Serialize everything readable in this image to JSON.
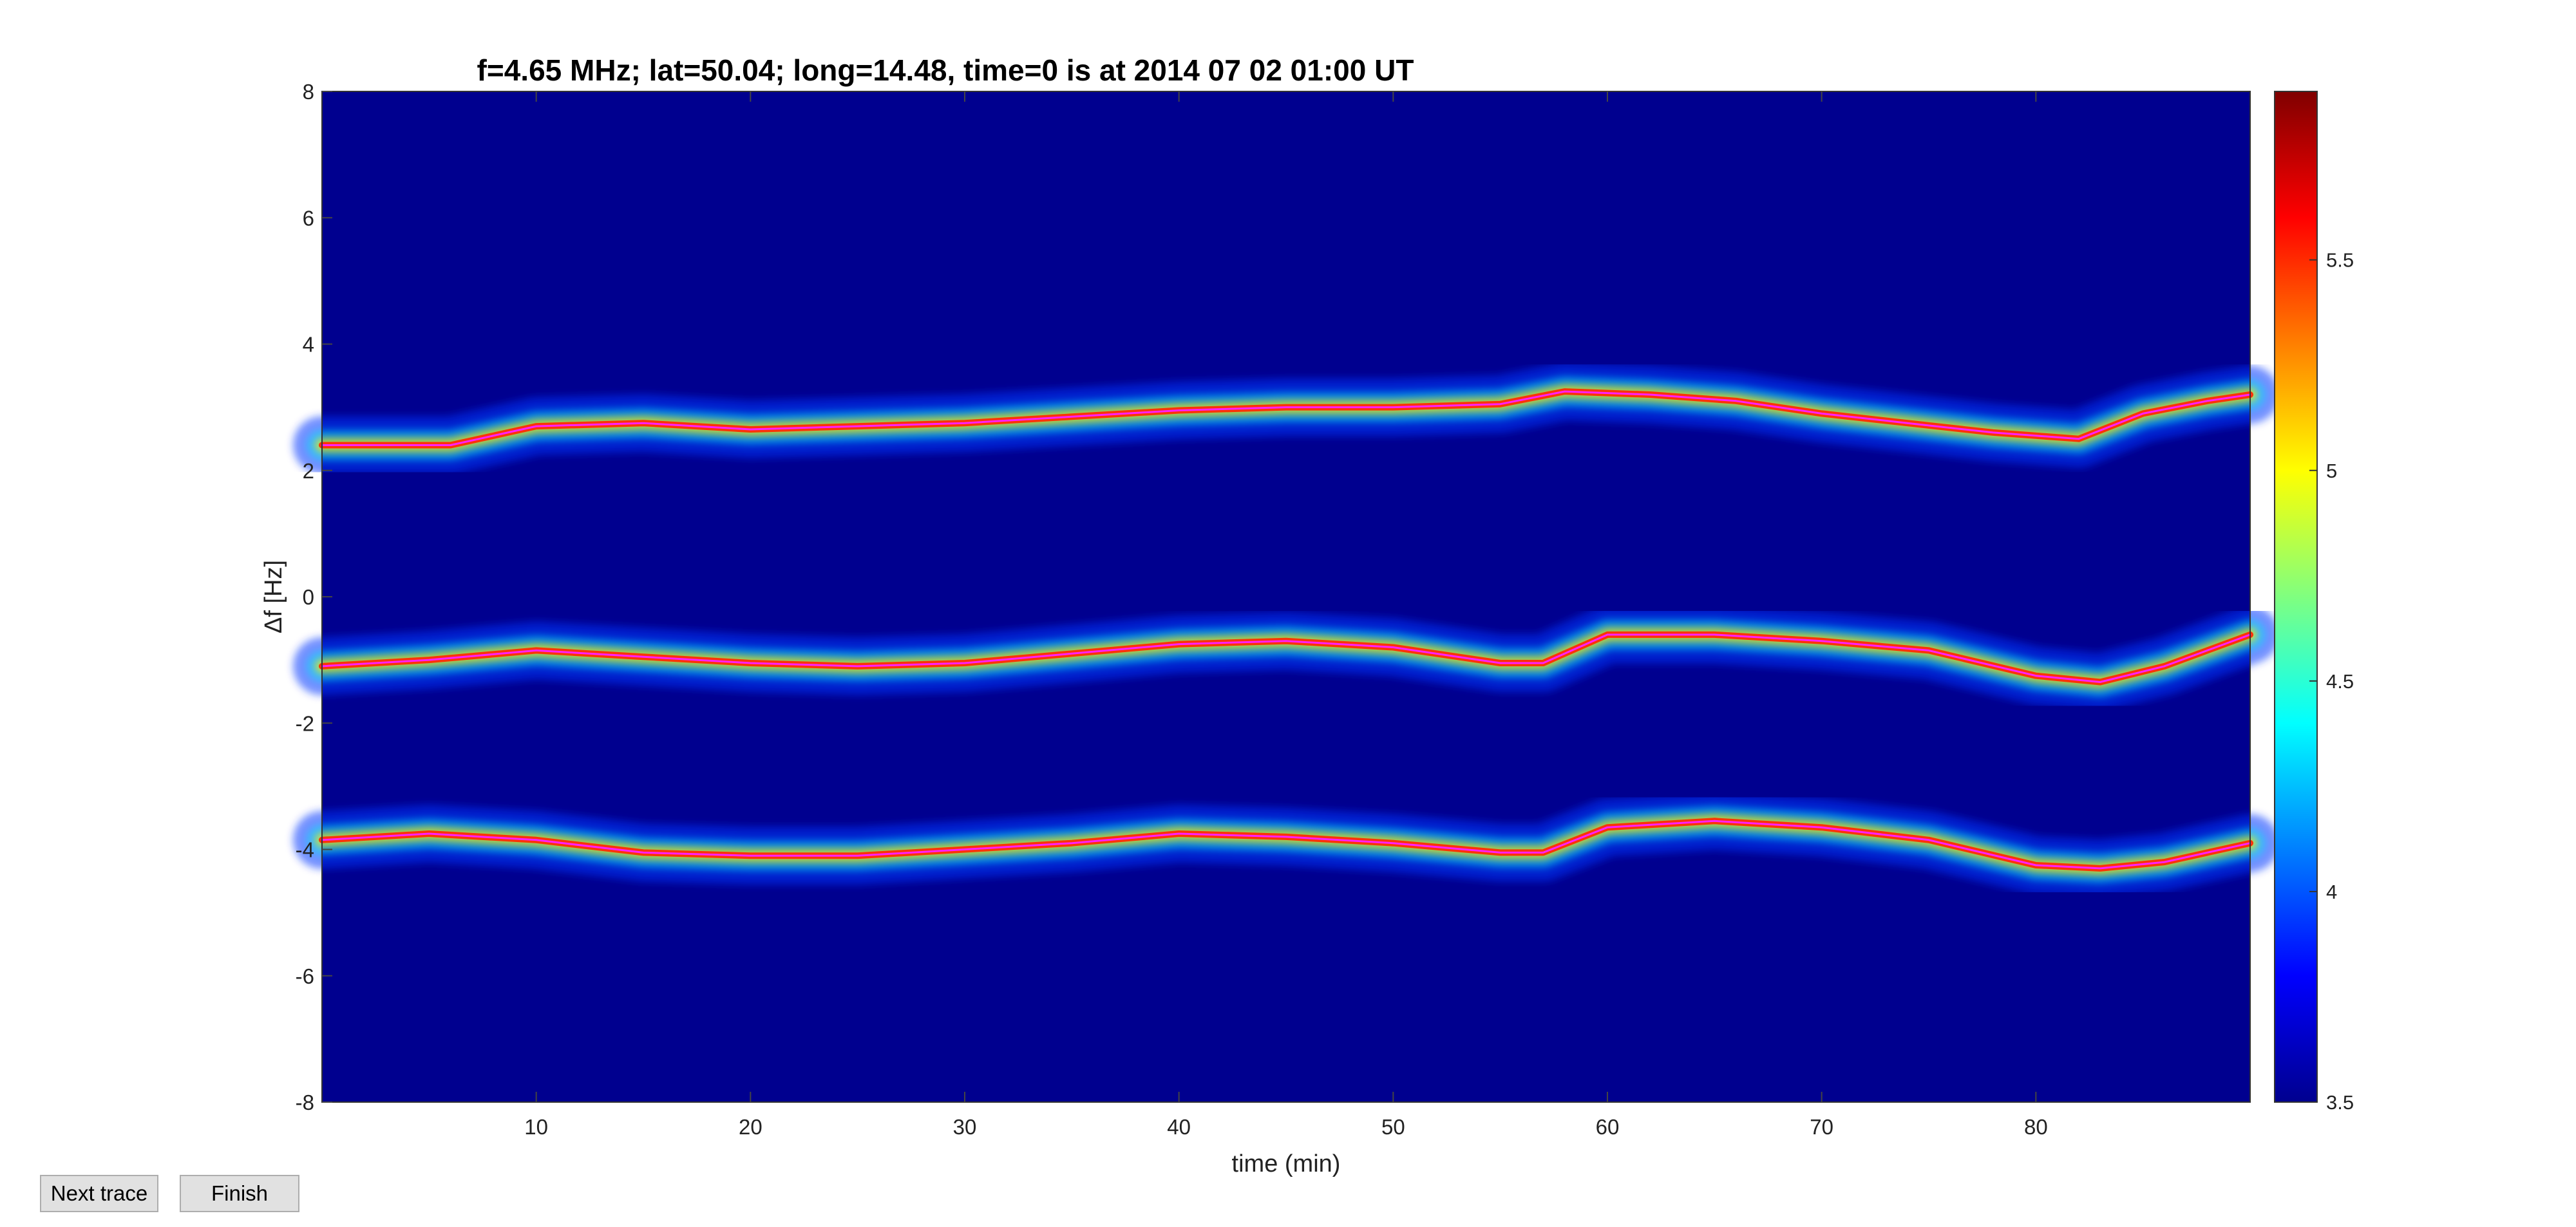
{
  "chart_data": {
    "type": "heatmap",
    "title": "f=4.65 MHz;  lat=50.04; long=14.48, time=0 is at 2014 07 02 01:00 UT",
    "xlabel": "time (min)",
    "ylabel": "Δf [Hz]",
    "xlim": [
      0,
      90
    ],
    "ylim": [
      -8,
      8
    ],
    "xticks": [
      10,
      20,
      30,
      40,
      50,
      60,
      70,
      80
    ],
    "yticks": [
      -8,
      -6,
      -4,
      -2,
      0,
      2,
      4,
      6,
      8
    ],
    "colorbar": {
      "colormap": "jet",
      "range": [
        3.5,
        5.9
      ],
      "ticks": [
        3.5,
        4,
        4.5,
        5,
        5.5
      ]
    },
    "background_color": "#00008f",
    "traces_color": "#ff20ff",
    "series": [
      {
        "x": [
          0,
          3,
          6,
          10,
          15,
          20,
          25,
          30,
          35,
          40,
          45,
          50,
          55,
          58,
          62,
          66,
          70,
          74,
          78,
          82,
          85,
          88,
          90
        ],
        "y": [
          2.4,
          2.4,
          2.4,
          2.7,
          2.75,
          2.65,
          2.7,
          2.75,
          2.85,
          2.95,
          3.0,
          3.0,
          3.05,
          3.25,
          3.2,
          3.1,
          2.9,
          2.75,
          2.6,
          2.5,
          2.9,
          3.1,
          3.2
        ]
      },
      {
        "x": [
          0,
          5,
          10,
          15,
          20,
          25,
          30,
          35,
          40,
          45,
          50,
          55,
          57,
          60,
          65,
          70,
          75,
          80,
          83,
          86,
          90
        ],
        "y": [
          -1.1,
          -1.0,
          -0.85,
          -0.95,
          -1.05,
          -1.1,
          -1.05,
          -0.9,
          -0.75,
          -0.7,
          -0.8,
          -1.05,
          -1.05,
          -0.6,
          -0.6,
          -0.7,
          -0.85,
          -1.25,
          -1.35,
          -1.1,
          -0.6
        ]
      },
      {
        "x": [
          0,
          5,
          10,
          15,
          20,
          25,
          30,
          35,
          40,
          45,
          50,
          55,
          57,
          60,
          65,
          70,
          75,
          80,
          83,
          86,
          90
        ],
        "y": [
          -3.85,
          -3.75,
          -3.85,
          -4.05,
          -4.1,
          -4.1,
          -4.0,
          -3.9,
          -3.75,
          -3.8,
          -3.9,
          -4.05,
          -4.05,
          -3.65,
          -3.55,
          -3.65,
          -3.85,
          -4.25,
          -4.3,
          -4.2,
          -3.9
        ]
      }
    ]
  },
  "buttons": {
    "next_label": "Next trace",
    "finish_label": "Finish"
  }
}
